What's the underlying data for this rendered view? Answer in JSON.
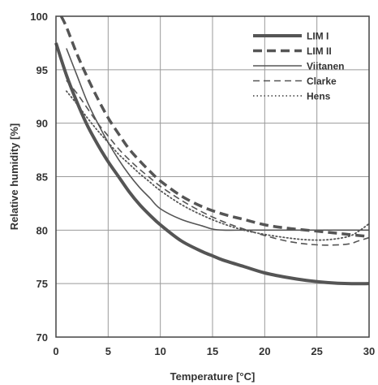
{
  "chart_data": {
    "type": "line",
    "title": "",
    "xlabel": "Temperature [°C]",
    "ylabel": "Relative humidity [%]",
    "xlim": [
      0,
      30
    ],
    "ylim": [
      70,
      100
    ],
    "x_ticks": [
      "0",
      "5",
      "10",
      "15",
      "20",
      "25",
      "30"
    ],
    "y_ticks": [
      "70",
      "75",
      "80",
      "85",
      "90",
      "95",
      "100"
    ],
    "grid": true,
    "legend_position": "top-right",
    "series": [
      {
        "name": "LIM I",
        "style": "thick-solid",
        "color": "#555555",
        "points": [
          [
            0,
            97.5
          ],
          [
            1,
            94.5
          ],
          [
            2,
            92
          ],
          [
            3,
            89.8
          ],
          [
            4,
            88
          ],
          [
            5,
            86.4
          ],
          [
            6,
            85
          ],
          [
            7,
            83.6
          ],
          [
            8,
            82.4
          ],
          [
            9,
            81.4
          ],
          [
            10,
            80.5
          ],
          [
            12,
            79
          ],
          [
            14,
            78
          ],
          [
            15,
            77.6
          ],
          [
            16,
            77.2
          ],
          [
            18,
            76.6
          ],
          [
            20,
            76
          ],
          [
            22,
            75.6
          ],
          [
            24,
            75.3
          ],
          [
            26,
            75.1
          ],
          [
            28,
            75
          ],
          [
            30,
            75
          ]
        ]
      },
      {
        "name": "LIM II",
        "style": "thick-dashed",
        "color": "#555555",
        "points": [
          [
            0.5,
            100
          ],
          [
            1,
            99
          ],
          [
            2,
            96.5
          ],
          [
            3,
            94.3
          ],
          [
            4,
            92.3
          ],
          [
            5,
            90.5
          ],
          [
            6,
            89
          ],
          [
            7,
            87.6
          ],
          [
            8,
            86.5
          ],
          [
            9,
            85.5
          ],
          [
            10,
            84.6
          ],
          [
            12,
            83.2
          ],
          [
            14,
            82.2
          ],
          [
            16,
            81.5
          ],
          [
            18,
            81
          ],
          [
            20,
            80.5
          ],
          [
            22,
            80.2
          ],
          [
            24,
            80
          ],
          [
            26,
            79.8
          ],
          [
            28,
            79.6
          ],
          [
            30,
            79.4
          ]
        ]
      },
      {
        "name": "Viitanen",
        "style": "thin-solid",
        "color": "#555555",
        "points": [
          [
            1,
            97
          ],
          [
            2,
            94.5
          ],
          [
            3,
            92
          ],
          [
            4,
            90
          ],
          [
            5,
            88.2
          ],
          [
            6,
            86.6
          ],
          [
            7,
            85.2
          ],
          [
            8,
            84
          ],
          [
            9,
            83
          ],
          [
            10,
            82
          ],
          [
            12,
            81
          ],
          [
            14,
            80.4
          ],
          [
            15,
            80.1
          ],
          [
            16,
            80
          ],
          [
            18,
            80
          ],
          [
            20,
            80
          ],
          [
            22,
            80
          ],
          [
            24,
            80
          ],
          [
            26,
            80
          ],
          [
            28,
            80
          ],
          [
            30,
            80
          ]
        ]
      },
      {
        "name": "Clarke",
        "style": "thin-dashed",
        "color": "#555555",
        "points": [
          [
            1,
            94
          ],
          [
            2,
            92.8
          ],
          [
            3,
            91.4
          ],
          [
            4,
            90
          ],
          [
            5,
            88.8
          ],
          [
            6,
            87.6
          ],
          [
            7,
            86.6
          ],
          [
            8,
            85.7
          ],
          [
            9,
            84.9
          ],
          [
            10,
            84.1
          ],
          [
            12,
            82.8
          ],
          [
            14,
            81.7
          ],
          [
            16,
            80.8
          ],
          [
            18,
            80.1
          ],
          [
            20,
            79.5
          ],
          [
            22,
            79
          ],
          [
            24,
            78.7
          ],
          [
            26,
            78.6
          ],
          [
            28,
            78.7
          ],
          [
            29,
            79
          ],
          [
            30,
            79.3
          ]
        ]
      },
      {
        "name": "Hens",
        "style": "dotted",
        "color": "#555555",
        "points": [
          [
            1,
            93
          ],
          [
            2,
            91.8
          ],
          [
            3,
            90.5
          ],
          [
            4,
            89.3
          ],
          [
            5,
            88.2
          ],
          [
            6,
            87.1
          ],
          [
            7,
            86.2
          ],
          [
            8,
            85.3
          ],
          [
            9,
            84.5
          ],
          [
            10,
            83.7
          ],
          [
            12,
            82.4
          ],
          [
            14,
            81.4
          ],
          [
            16,
            80.6
          ],
          [
            18,
            80
          ],
          [
            20,
            79.6
          ],
          [
            22,
            79.3
          ],
          [
            24,
            79.1
          ],
          [
            26,
            79.1
          ],
          [
            28,
            79.4
          ],
          [
            29,
            79.9
          ],
          [
            30,
            80.6
          ]
        ]
      }
    ]
  }
}
